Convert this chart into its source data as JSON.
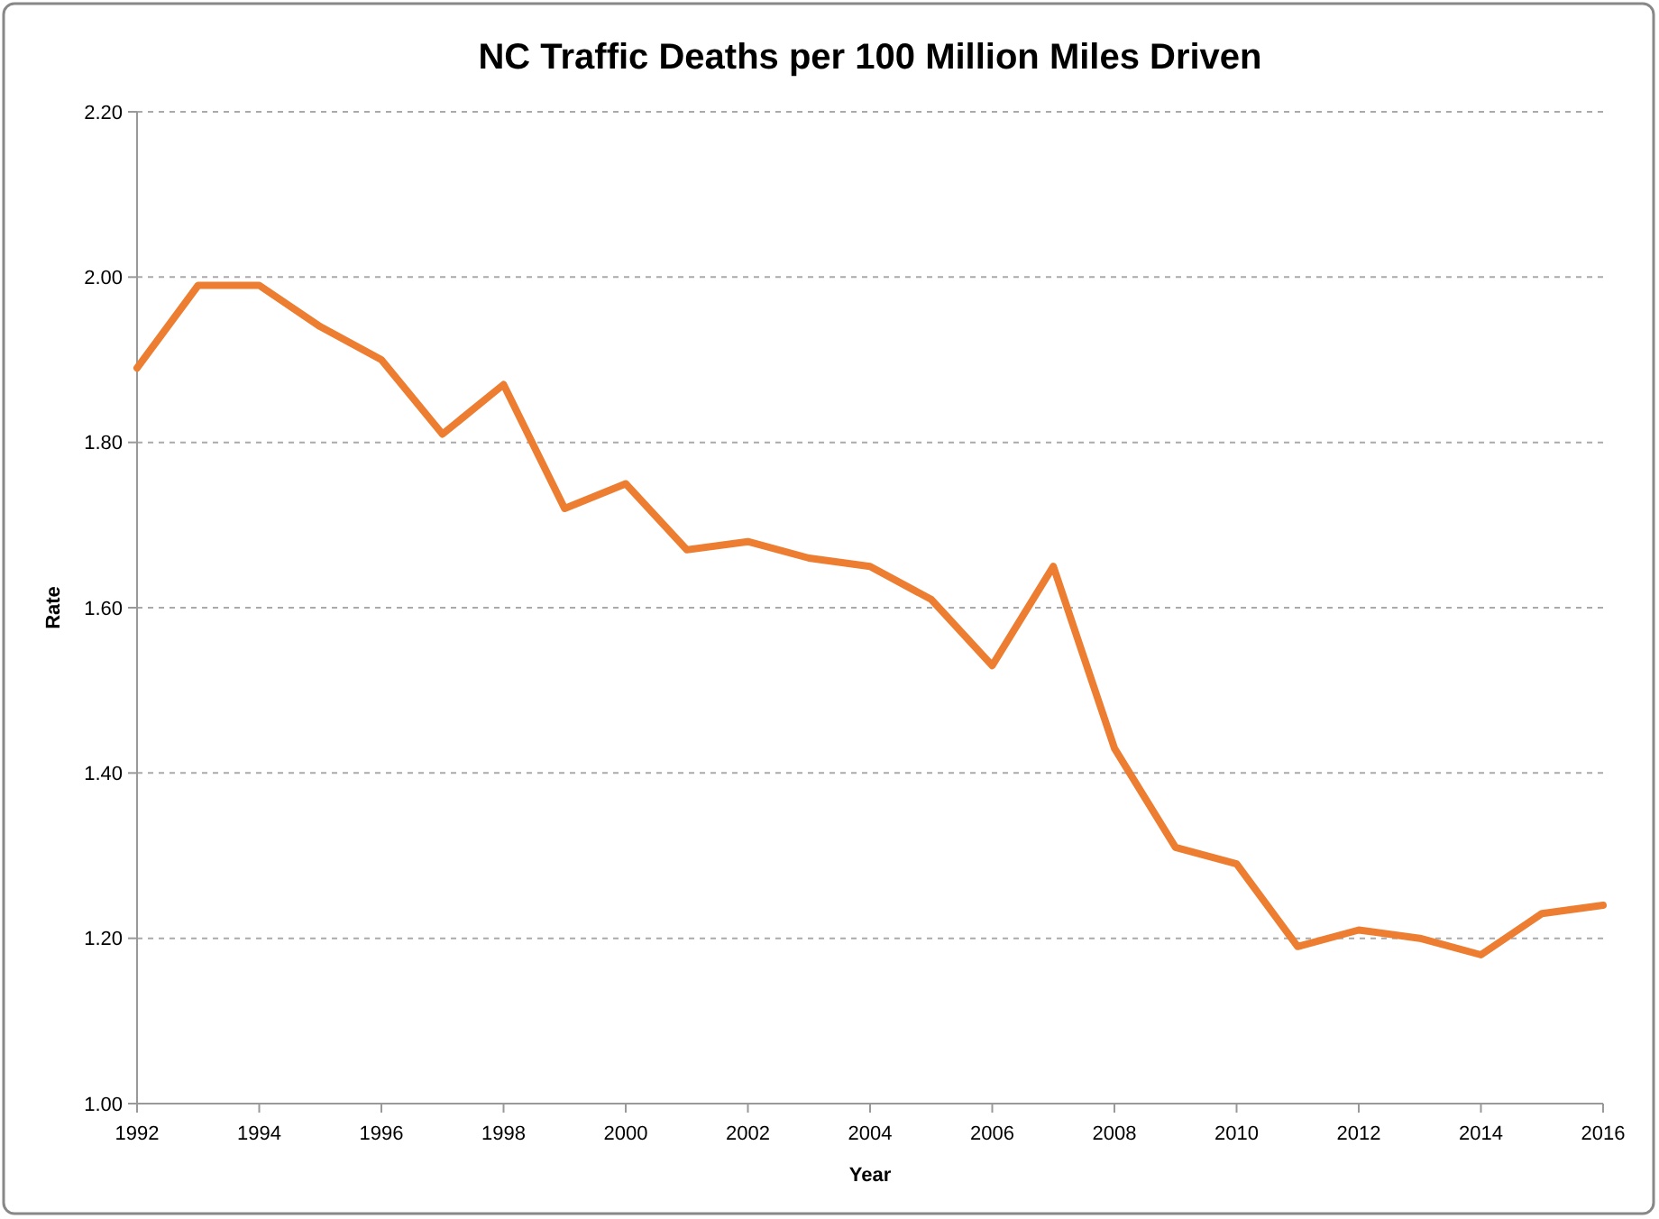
{
  "chart_data": {
    "type": "line",
    "title": "NC Traffic Deaths per 100 Million Miles Driven",
    "xlabel": "Year",
    "ylabel": "Rate",
    "x": [
      1992,
      1993,
      1994,
      1995,
      1996,
      1997,
      1998,
      1999,
      2000,
      2001,
      2002,
      2003,
      2004,
      2005,
      2006,
      2007,
      2008,
      2009,
      2010,
      2011,
      2012,
      2013,
      2014,
      2015,
      2016
    ],
    "series": [
      {
        "color": "#ed7d31",
        "values": [
          1.89,
          1.99,
          1.99,
          1.94,
          1.9,
          1.81,
          1.87,
          1.72,
          1.75,
          1.67,
          1.68,
          1.66,
          1.65,
          1.61,
          1.53,
          1.65,
          1.43,
          1.31,
          1.29,
          1.19,
          1.21,
          1.2,
          1.18,
          1.23,
          1.24
        ]
      }
    ],
    "xlim": [
      1992,
      2016
    ],
    "xticks": [
      1992,
      1994,
      1996,
      1998,
      2000,
      2002,
      2004,
      2006,
      2008,
      2010,
      2012,
      2014,
      2016
    ],
    "ylim": [
      1.0,
      2.2
    ],
    "yticks": [
      {
        "value": 1.0,
        "label": "1.00"
      },
      {
        "value": 1.2,
        "label": "1.20"
      },
      {
        "value": 1.4,
        "label": "1.40"
      },
      {
        "value": 1.6,
        "label": "1.60"
      },
      {
        "value": 1.8,
        "label": "1.80"
      },
      {
        "value": 2.0,
        "label": "2.00"
      },
      {
        "value": 2.2,
        "label": "2.20"
      }
    ],
    "grid": "y",
    "marker": "none",
    "line_style": "solid"
  }
}
